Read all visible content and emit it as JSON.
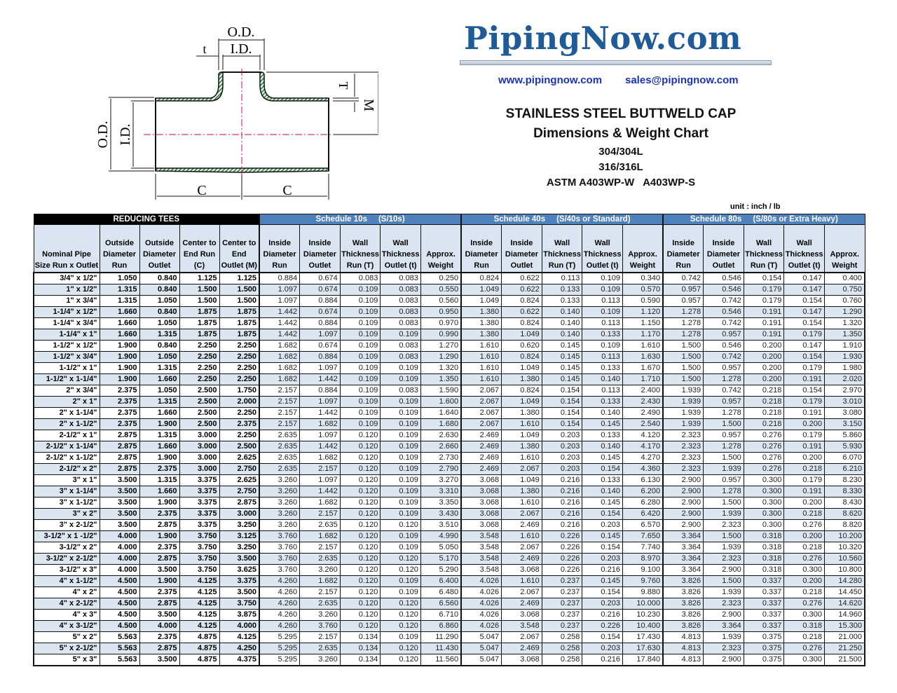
{
  "diagram": {
    "od_top": "O.D.",
    "id_top": "I.D.",
    "t": "t",
    "T": "T",
    "M": "M",
    "od_left": "O.D.",
    "id_left": "I.D.",
    "c1": "C",
    "c2": "C"
  },
  "brand": {
    "logo": "PipingNow.com",
    "website": "www.pipingnow.com",
    "email": "sales@pipingnow.com",
    "color": "#1f5b99"
  },
  "title": {
    "line1": "STAINLESS STEEL BUTTWELD CAP",
    "line2": "Dimensions & Weight Chart",
    "line3": "304/304L",
    "line4": "316/316L",
    "line5": "ASTM A403WP-W   A403WP-S"
  },
  "unit": "unit : inch / lb",
  "table": {
    "bands": [
      "REDUCING TEES",
      "Schedule 10s     (S/10s)",
      "Schedule 40s     (S/40s or Standard)",
      "Schedule 80s     (S/80s or Extra Heavy)"
    ],
    "headers": [
      "Nominal Pipe Size Run x Outlet",
      "Outside Diameter Run",
      "Outside Diameter Outlet",
      "Center to End Run (C)",
      "Center to End Outlet (M)",
      "Inside Diameter Run",
      "Inside Diameter Outlet",
      "Wall Thickness Run (T)",
      "Wall Thickness Outlet (t)",
      "Approx. Weight",
      "Inside Diameter Run",
      "Inside Diameter Outlet",
      "Wall Thickness Run (T)",
      "Wall Thickness Outlet (t)",
      "Approx. Weight",
      "Inside Diameter Run",
      "Inside Diameter Outlet",
      "Wall Thickness Run (T)",
      "Wall Thickness Outlet (t)",
      "Approx. Weight"
    ],
    "rows": [
      [
        "3/4\" x 1/2\"",
        "1.050",
        "0.840",
        "1.125",
        "1.125",
        "0.884",
        "0.674",
        "0.083",
        "0.083",
        "0.250",
        "0.824",
        "0.622",
        "0.113",
        "0.109",
        "0.340",
        "0.742",
        "0.546",
        "0.154",
        "0.147",
        "0.400"
      ],
      [
        "1\" x 1/2\"",
        "1.315",
        "0.840",
        "1.500",
        "1.500",
        "1.097",
        "0.674",
        "0.109",
        "0.083",
        "0.550",
        "1.049",
        "0.622",
        "0.133",
        "0.109",
        "0.570",
        "0.957",
        "0.546",
        "0.179",
        "0.147",
        "0.750"
      ],
      [
        "1\" x 3/4\"",
        "1.315",
        "1.050",
        "1.500",
        "1.500",
        "1.097",
        "0.884",
        "0.109",
        "0.083",
        "0.560",
        "1.049",
        "0.824",
        "0.133",
        "0.113",
        "0.590",
        "0.957",
        "0.742",
        "0.179",
        "0.154",
        "0.760"
      ],
      [
        "1-1/4\" x 1/2\"",
        "1.660",
        "0.840",
        "1.875",
        "1.875",
        "1.442",
        "0.674",
        "0.109",
        "0.083",
        "0.950",
        "1.380",
        "0.622",
        "0.140",
        "0.109",
        "1.120",
        "1.278",
        "0.546",
        "0.191",
        "0.147",
        "1.290"
      ],
      [
        "1-1/4\" x 3/4\"",
        "1.660",
        "1.050",
        "1.875",
        "1.875",
        "1.442",
        "0.884",
        "0.109",
        "0.083",
        "0.970",
        "1.380",
        "0.824",
        "0.140",
        "0.113",
        "1.150",
        "1.278",
        "0.742",
        "0.191",
        "0.154",
        "1.320"
      ],
      [
        "1-1/4\" x 1\"",
        "1.660",
        "1.315",
        "1.875",
        "1.875",
        "1.442",
        "1.097",
        "0.109",
        "0.109",
        "0.990",
        "1.380",
        "1.049",
        "0.140",
        "0.133",
        "1.170",
        "1.278",
        "0.957",
        "0.191",
        "0.179",
        "1.350"
      ],
      [
        "1-1/2\" x 1/2\"",
        "1.900",
        "0.840",
        "2.250",
        "2.250",
        "1.682",
        "0.674",
        "0.109",
        "0.083",
        "1.270",
        "1.610",
        "0.620",
        "0.145",
        "0.109",
        "1.610",
        "1.500",
        "0.546",
        "0.200",
        "0.147",
        "1.910"
      ],
      [
        "1-1/2\" x 3/4\"",
        "1.900",
        "1.050",
        "2.250",
        "2.250",
        "1.682",
        "0.884",
        "0.109",
        "0.083",
        "1.290",
        "1.610",
        "0.824",
        "0.145",
        "0.113",
        "1.630",
        "1.500",
        "0.742",
        "0.200",
        "0.154",
        "1.930"
      ],
      [
        "1-1/2\" x 1\"",
        "1.900",
        "1.315",
        "2.250",
        "2.250",
        "1.682",
        "1.097",
        "0.109",
        "0.109",
        "1.320",
        "1.610",
        "1.049",
        "0.145",
        "0.133",
        "1.670",
        "1.500",
        "0.957",
        "0.200",
        "0.179",
        "1.980"
      ],
      [
        "1-1/2\" x 1-1/4\"",
        "1.900",
        "1.660",
        "2.250",
        "2.250",
        "1.682",
        "1.442",
        "0.109",
        "0.109",
        "1.350",
        "1.610",
        "1.380",
        "0.145",
        "0.140",
        "1.710",
        "1.500",
        "1.278",
        "0.200",
        "0.191",
        "2.020"
      ],
      [
        "2\" x 3/4\"",
        "2.375",
        "1.050",
        "2.500",
        "1.750",
        "2.157",
        "0.884",
        "0.109",
        "0.083",
        "1.590",
        "2.067",
        "0.824",
        "0.154",
        "0.113",
        "2.400",
        "1.939",
        "0.742",
        "0.218",
        "0.154",
        "2.970"
      ],
      [
        "2\" x 1\"",
        "2.375",
        "1.315",
        "2.500",
        "2.000",
        "2.157",
        "1.097",
        "0.109",
        "0.109",
        "1.600",
        "2.067",
        "1.049",
        "0.154",
        "0.133",
        "2.430",
        "1.939",
        "0.957",
        "0.218",
        "0.179",
        "3.010"
      ],
      [
        "2\" x 1-1/4\"",
        "2.375",
        "1.660",
        "2.500",
        "2.250",
        "2.157",
        "1.442",
        "0.109",
        "0.109",
        "1.640",
        "2.067",
        "1.380",
        "0.154",
        "0.140",
        "2.490",
        "1.939",
        "1.278",
        "0.218",
        "0.191",
        "3.080"
      ],
      [
        "2\" x 1-1/2\"",
        "2.375",
        "1.900",
        "2.500",
        "2.375",
        "2.157",
        "1.682",
        "0.109",
        "0.109",
        "1.680",
        "2.067",
        "1.610",
        "0.154",
        "0.145",
        "2.540",
        "1.939",
        "1.500",
        "0.218",
        "0.200",
        "3.150"
      ],
      [
        "2-1/2\" x 1\"",
        "2.875",
        "1.315",
        "3.000",
        "2.250",
        "2.635",
        "1.097",
        "0.120",
        "0.109",
        "2.630",
        "2.469",
        "1.049",
        "0.203",
        "0.133",
        "4.120",
        "2.323",
        "0.957",
        "0.276",
        "0.179",
        "5.860"
      ],
      [
        "2-1/2\" x 1-1/4\"",
        "2.875",
        "1.660",
        "3.000",
        "2.500",
        "2.635",
        "1.442",
        "0.120",
        "0.109",
        "2.660",
        "2.469",
        "1.380",
        "0.203",
        "0.140",
        "4.170",
        "2.323",
        "1.278",
        "0.276",
        "0.191",
        "5.930"
      ],
      [
        "2-1/2\" x 1-1/2\"",
        "2.875",
        "1.900",
        "3.000",
        "2.625",
        "2.635",
        "1.682",
        "0.120",
        "0.109",
        "2.730",
        "2.469",
        "1.610",
        "0.203",
        "0.145",
        "4.270",
        "2.323",
        "1.500",
        "0.276",
        "0.200",
        "6.070"
      ],
      [
        "2-1/2\" x 2\"",
        "2.875",
        "2.375",
        "3.000",
        "2.750",
        "2.635",
        "2.157",
        "0.120",
        "0.109",
        "2.790",
        "2.469",
        "2.067",
        "0.203",
        "0.154",
        "4.360",
        "2.323",
        "1.939",
        "0.276",
        "0.218",
        "6.210"
      ],
      [
        "3\" x 1\"",
        "3.500",
        "1.315",
        "3.375",
        "2.625",
        "3.260",
        "1.097",
        "0.120",
        "0.109",
        "3.270",
        "3.068",
        "1.049",
        "0.216",
        "0.133",
        "6.130",
        "2.900",
        "0.957",
        "0.300",
        "0.179",
        "8.230"
      ],
      [
        "3\" x 1-1/4\"",
        "3.500",
        "1.660",
        "3.375",
        "2.750",
        "3.260",
        "1.442",
        "0.120",
        "0.109",
        "3.310",
        "3.068",
        "1.380",
        "0.216",
        "0.140",
        "6.200",
        "2.900",
        "1.278",
        "0.300",
        "0.191",
        "8.330"
      ],
      [
        "3\" x 1-1/2\"",
        "3.500",
        "1.900",
        "3.375",
        "2.875",
        "3.260",
        "1.682",
        "0.120",
        "0.109",
        "3.350",
        "3.068",
        "1.610",
        "0.216",
        "0.145",
        "6.280",
        "2.900",
        "1.500",
        "0.300",
        "0.200",
        "8.430"
      ],
      [
        "3\" x 2\"",
        "3.500",
        "2.375",
        "3.375",
        "3.000",
        "3.260",
        "2.157",
        "0.120",
        "0.109",
        "3.430",
        "3.068",
        "2.067",
        "0.216",
        "0.154",
        "6.420",
        "2.900",
        "1.939",
        "0.300",
        "0.218",
        "8.620"
      ],
      [
        "3\" x 2-1/2\"",
        "3.500",
        "2.875",
        "3.375",
        "3.250",
        "3.260",
        "2.635",
        "0.120",
        "0.120",
        "3.510",
        "3.068",
        "2.469",
        "0.216",
        "0.203",
        "6.570",
        "2.900",
        "2.323",
        "0.300",
        "0.276",
        "8.820"
      ],
      [
        "3-1/2\" x 1 -1/2\"",
        "4.000",
        "1.900",
        "3.750",
        "3.125",
        "3.760",
        "1.682",
        "0.120",
        "0.109",
        "4.990",
        "3.548",
        "1.610",
        "0.226",
        "0.145",
        "7.650",
        "3.364",
        "1.500",
        "0.318",
        "0.200",
        "10.200"
      ],
      [
        "3-1/2\" x 2\"",
        "4.000",
        "2.375",
        "3.750",
        "3.250",
        "3.760",
        "2.157",
        "0.120",
        "0.109",
        "5.050",
        "3.548",
        "2.067",
        "0.226",
        "0.154",
        "7.740",
        "3.364",
        "1.939",
        "0.318",
        "0.218",
        "10.320"
      ],
      [
        "3-1/2\" x 2-1/2\"",
        "4.000",
        "2.875",
        "3.750",
        "3.500",
        "3.760",
        "2.635",
        "0.120",
        "0.120",
        "5.170",
        "3.548",
        "2.469",
        "0.226",
        "0.203",
        "8.970",
        "3.364",
        "2.323",
        "0.318",
        "0.276",
        "10.560"
      ],
      [
        "3-1/2\" x 3\"",
        "4.000",
        "3.500",
        "3.750",
        "3.625",
        "3.760",
        "3.260",
        "0.120",
        "0.120",
        "5.290",
        "3.548",
        "3.068",
        "0.226",
        "0.216",
        "9.100",
        "3.364",
        "2.900",
        "0.318",
        "0.300",
        "10.800"
      ],
      [
        "4\" x 1-1/2\"",
        "4.500",
        "1.900",
        "4.125",
        "3.375",
        "4.260",
        "1.682",
        "0.120",
        "0.109",
        "6.400",
        "4.026",
        "1.610",
        "0.237",
        "0.145",
        "9.760",
        "3.826",
        "1.500",
        "0.337",
        "0.200",
        "14.280"
      ],
      [
        "4\" x 2\"",
        "4.500",
        "2.375",
        "4.125",
        "3.500",
        "4.260",
        "2.157",
        "0.120",
        "0.109",
        "6.480",
        "4.026",
        "2.067",
        "0.237",
        "0.154",
        "9.880",
        "3.826",
        "1.939",
        "0.337",
        "0.218",
        "14.450"
      ],
      [
        "4\" x 2-1/2\"",
        "4.500",
        "2.875",
        "4.125",
        "3.750",
        "4.260",
        "2.635",
        "0.120",
        "0.120",
        "6.560",
        "4.026",
        "2.469",
        "0.237",
        "0.203",
        "10.000",
        "3.826",
        "2.323",
        "0.337",
        "0.276",
        "14.620"
      ],
      [
        "4\" x 3\"",
        "4.500",
        "3.500",
        "4.125",
        "3.875",
        "4.260",
        "3.260",
        "0.120",
        "0.120",
        "6.710",
        "4.026",
        "3.068",
        "0.237",
        "0.216",
        "10.230",
        "3.826",
        "2.900",
        "0.337",
        "0.300",
        "14.960"
      ],
      [
        "4\" x 3-1/2\"",
        "4.500",
        "4.000",
        "4.125",
        "4.000",
        "4.260",
        "3.760",
        "0.120",
        "0.120",
        "6.860",
        "4.026",
        "3.548",
        "0.237",
        "0.226",
        "10.400",
        "3.826",
        "3.364",
        "0.337",
        "0.318",
        "15.300"
      ],
      [
        "5\" x 2\"",
        "5.563",
        "2.375",
        "4.875",
        "4.125",
        "5.295",
        "2.157",
        "0.134",
        "0.109",
        "11.290",
        "5.047",
        "2.067",
        "0.258",
        "0.154",
        "17.430",
        "4.813",
        "1.939",
        "0.375",
        "0.218",
        "21.000"
      ],
      [
        "5\" x 2-1/2\"",
        "5.563",
        "2.875",
        "4.875",
        "4.250",
        "5.295",
        "2.635",
        "0.134",
        "0.120",
        "11.430",
        "5.047",
        "2.469",
        "0.258",
        "0.203",
        "17.630",
        "4.813",
        "2.323",
        "0.375",
        "0.276",
        "21.250"
      ],
      [
        "5\" x 3\"",
        "5.563",
        "3.500",
        "4.875",
        "4.375",
        "5.295",
        "3.260",
        "0.134",
        "0.120",
        "11.560",
        "5.047",
        "3.068",
        "0.258",
        "0.216",
        "17.840",
        "4.813",
        "2.900",
        "0.375",
        "0.300",
        "21.500"
      ]
    ]
  }
}
